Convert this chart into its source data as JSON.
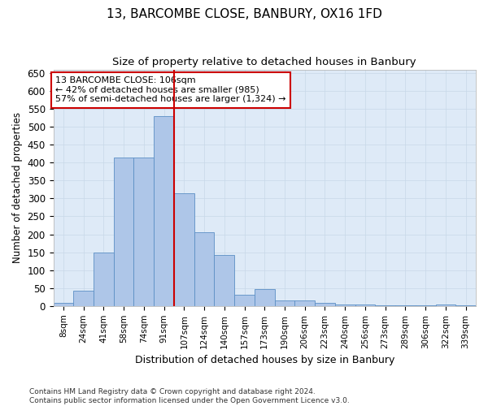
{
  "title": "13, BARCOMBE CLOSE, BANBURY, OX16 1FD",
  "subtitle": "Size of property relative to detached houses in Banbury",
  "xlabel": "Distribution of detached houses by size in Banbury",
  "ylabel": "Number of detached properties",
  "categories": [
    "8sqm",
    "24sqm",
    "41sqm",
    "58sqm",
    "74sqm",
    "91sqm",
    "107sqm",
    "124sqm",
    "140sqm",
    "157sqm",
    "173sqm",
    "190sqm",
    "206sqm",
    "223sqm",
    "240sqm",
    "256sqm",
    "273sqm",
    "289sqm",
    "306sqm",
    "322sqm",
    "339sqm"
  ],
  "values": [
    8,
    43,
    150,
    415,
    415,
    530,
    315,
    205,
    142,
    32,
    48,
    15,
    15,
    8,
    5,
    3,
    2,
    2,
    2,
    5,
    2
  ],
  "bar_color": "#aec6e8",
  "bar_edge_color": "#5b8fc4",
  "vline_index": 6,
  "marker_label": "13 BARCOMBE CLOSE: 106sqm",
  "marker_line1": "← 42% of detached houses are smaller (985)",
  "marker_line2": "57% of semi-detached houses are larger (1,324) →",
  "vline_color": "#cc0000",
  "annotation_box_color": "#cc0000",
  "ylim": [
    0,
    660
  ],
  "yticks": [
    0,
    50,
    100,
    150,
    200,
    250,
    300,
    350,
    400,
    450,
    500,
    550,
    600,
    650
  ],
  "grid_color": "#c8d8e8",
  "background_color": "#deeaf7",
  "footer_line1": "Contains HM Land Registry data © Crown copyright and database right 2024.",
  "footer_line2": "Contains public sector information licensed under the Open Government Licence v3.0."
}
